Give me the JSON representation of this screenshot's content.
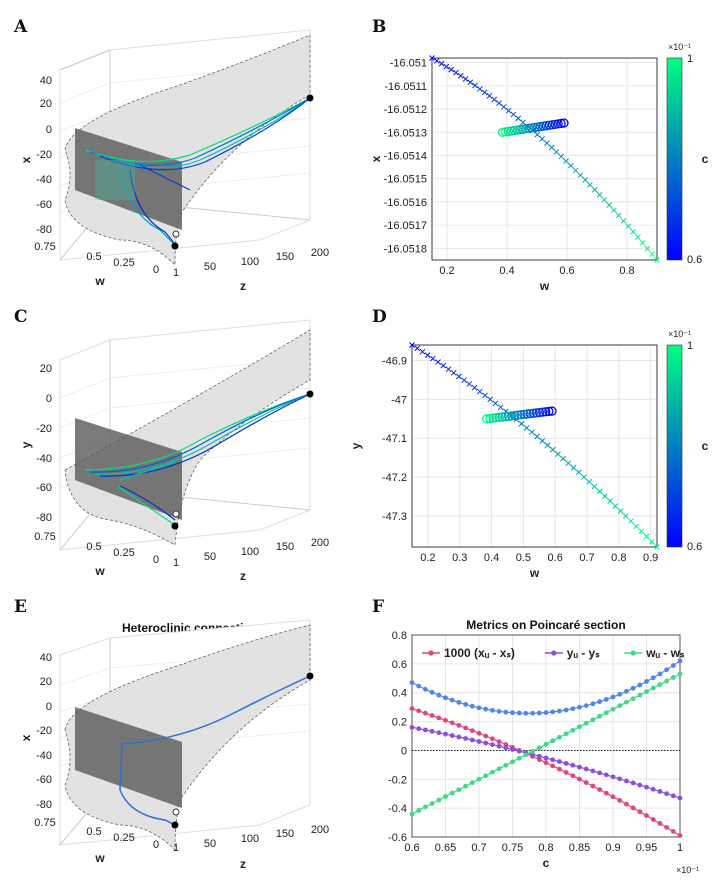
{
  "panels": {
    "A": {
      "letter": "A",
      "xlabel": "w",
      "ylabel": "z",
      "zlabel": "x",
      "w_ticks": [
        "0.75",
        "0.5",
        "0.25",
        "0",
        "1"
      ],
      "z_ticks": [
        "50",
        "100",
        "150",
        "200"
      ],
      "v_ticks": [
        "40",
        "20",
        "0",
        "-20",
        "-40",
        "-60",
        "-80"
      ]
    },
    "C": {
      "letter": "C",
      "xlabel": "w",
      "ylabel": "z",
      "zlabel": "y",
      "w_ticks": [
        "0.75",
        "0.5",
        "0.25",
        "0",
        "1"
      ],
      "z_ticks": [
        "50",
        "100",
        "150",
        "200"
      ],
      "v_ticks": [
        "20",
        "0",
        "-20",
        "-40",
        "-60",
        "-80"
      ]
    },
    "E": {
      "letter": "E",
      "title": "Heteroclinic connection",
      "xlabel": "w",
      "ylabel": "z",
      "zlabel": "x",
      "w_ticks": [
        "0.75",
        "0.5",
        "0.25",
        "0",
        "1"
      ],
      "z_ticks": [
        "50",
        "100",
        "150",
        "200"
      ],
      "v_ticks": [
        "40",
        "20",
        "0",
        "-20",
        "-40",
        "-60",
        "-80"
      ]
    }
  },
  "colorbar": {
    "label": "c",
    "min": "0.6",
    "max": "1",
    "exponent": "×10⁻¹",
    "colors": [
      "#0000ff",
      "#00ff80"
    ]
  },
  "chart_data": [
    {
      "type": "scatter",
      "letter": "B",
      "xlabel": "w",
      "ylabel": "x",
      "xlim": [
        0.15,
        0.9
      ],
      "ylim": [
        -16.05185,
        -16.05098
      ],
      "x_ticks": [
        0.2,
        0.4,
        0.6,
        0.8
      ],
      "x_tick_labels": [
        "0.2",
        "0.4",
        "0.6",
        "0.8"
      ],
      "y_ticks": [
        -16.051,
        -16.0511,
        -16.0512,
        -16.0513,
        -16.0514,
        -16.0515,
        -16.0516,
        -16.0517,
        -16.0518
      ],
      "y_tick_labels": [
        "-16.051",
        "-16.0511",
        "-16.0512",
        "-16.0513",
        "-16.0514",
        "-16.0515",
        "-16.0516",
        "-16.0517",
        "-16.0518"
      ],
      "grid": true,
      "series": [
        {
          "marker": "x",
          "x_start": 0.15,
          "x_end": 0.9,
          "y_start": -16.05098,
          "y_mid": -16.05126,
          "y_end": -16.05185,
          "n": 48
        },
        {
          "marker": "o",
          "x_start": 0.385,
          "x_end": 0.59,
          "y_start": -16.0513,
          "y_end": -16.05126,
          "n": 22
        }
      ],
      "colorbar": {
        "label": "c",
        "min": 0.6,
        "max": 1
      }
    },
    {
      "type": "scatter",
      "letter": "D",
      "xlabel": "w",
      "ylabel": "y",
      "xlim": [
        0.15,
        0.92
      ],
      "ylim": [
        -47.38,
        -46.86
      ],
      "x_ticks": [
        0.2,
        0.3,
        0.4,
        0.5,
        0.6,
        0.7,
        0.8,
        0.9
      ],
      "x_tick_labels": [
        "0.2",
        "0.3",
        "0.4",
        "0.5",
        "0.6",
        "0.7",
        "0.8",
        "0.9"
      ],
      "y_ticks": [
        -46.9,
        -47,
        -47.1,
        -47.2,
        -47.3
      ],
      "y_tick_labels": [
        "-46.9",
        "-47",
        "-47.1",
        "-47.2",
        "-47.3"
      ],
      "grid": true,
      "series": [
        {
          "marker": "x",
          "x_start": 0.15,
          "x_end": 0.92,
          "y_start": -46.86,
          "y_mid": -47.06,
          "y_end": -47.38,
          "n": 48
        },
        {
          "marker": "o",
          "x_start": 0.385,
          "x_end": 0.59,
          "y_start": -47.05,
          "y_end": -47.03,
          "n": 22
        }
      ],
      "colorbar": {
        "label": "c",
        "min": 0.6,
        "max": 1
      }
    },
    {
      "type": "line",
      "letter": "F",
      "title": "Metrics on Poincaré section",
      "xlabel": "c",
      "x_exponent": "×10⁻¹",
      "xlim": [
        0.6,
        1.0
      ],
      "ylim": [
        -0.6,
        0.8
      ],
      "x_ticks": [
        0.6,
        0.65,
        0.7,
        0.75,
        0.8,
        0.85,
        0.9,
        0.95,
        1.0
      ],
      "x_tick_labels": [
        "0.6",
        "0.65",
        "0.7",
        "0.75",
        "0.8",
        "0.85",
        "0.9",
        "0.95",
        "1"
      ],
      "y_ticks": [
        -0.6,
        -0.4,
        -0.2,
        0,
        0.2,
        0.4,
        0.6,
        0.8
      ],
      "y_tick_labels": [
        "-0.6",
        "-0.4",
        "-0.2",
        "0",
        "0.2",
        "0.4",
        "0.6",
        "0.8"
      ],
      "grid": true,
      "legend": "top",
      "series": [
        {
          "name": "1000 (xᵤ - xₛ)",
          "color": "#e0457b",
          "y_start": 0.29,
          "y_mid": -0.02,
          "y_end": -0.59,
          "curv": 0.35
        },
        {
          "name": "yᵤ - yₛ",
          "color": "#8a4fe0",
          "y_start": 0.16,
          "y_mid": -0.02,
          "y_end": -0.33,
          "curv": 0.25
        },
        {
          "name": "wᵤ - wₛ",
          "color": "#3ed98a",
          "y_start": -0.44,
          "y_mid": 0.04,
          "y_end": 0.53,
          "curv": -0.45
        },
        {
          "color": "#4f86e8",
          "y_start": 0.47,
          "y_mid": -0.02,
          "y_end": 0.62,
          "curv": -0.9
        }
      ]
    }
  ]
}
